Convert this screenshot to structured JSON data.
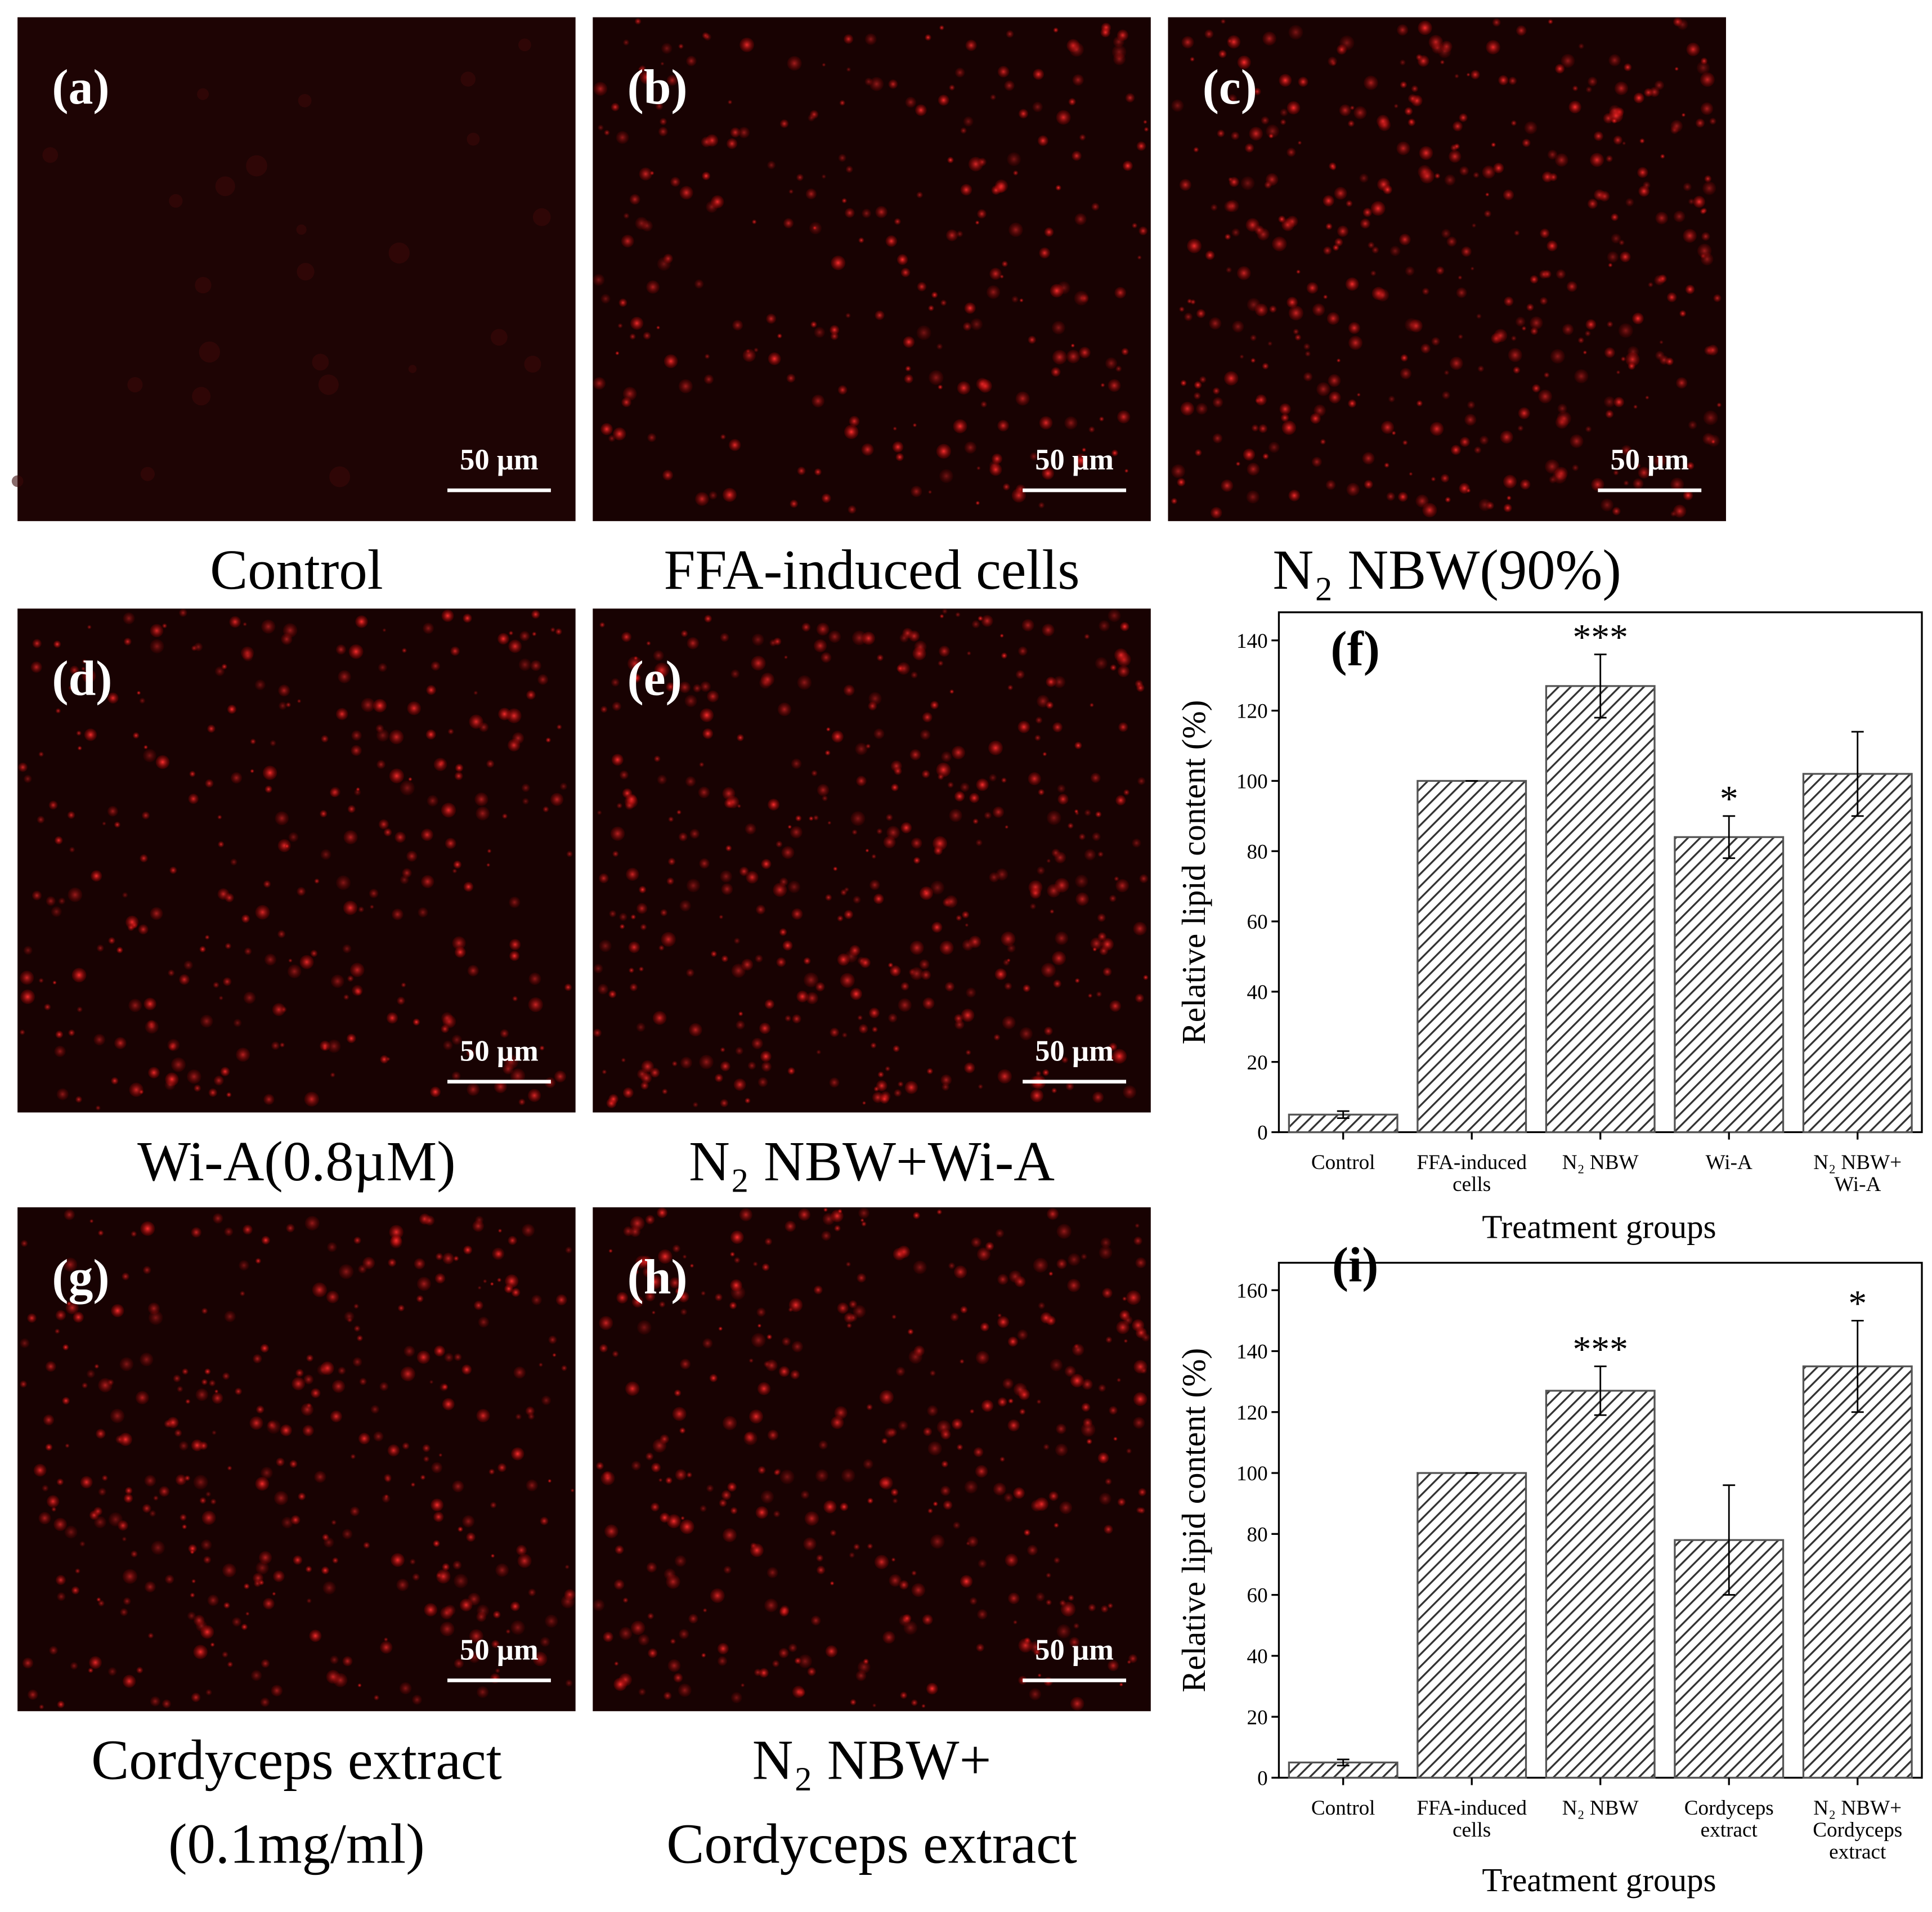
{
  "panels": [
    {
      "label": "(a)",
      "caption": [
        "Control"
      ],
      "scale_bar": "50 µm"
    },
    {
      "label": "(b)",
      "caption": [
        "FFA-induced cells"
      ],
      "scale_bar": "50 µm"
    },
    {
      "label": "(c)",
      "caption": [
        "N₂ NBW(90%)"
      ],
      "scale_bar": "50 µm"
    },
    {
      "label": "(d)",
      "caption": [
        "Wi-A(0.8µM)"
      ],
      "scale_bar": "50 µm"
    },
    {
      "label": "(e)",
      "caption": [
        "N₂ NBW+Wi-A"
      ],
      "scale_bar": "50 µm"
    },
    {
      "label": "(g)",
      "caption": [
        "Cordyceps extract",
        "(0.1mg/ml)"
      ],
      "scale_bar": "50 µm"
    },
    {
      "label": "(h)",
      "caption": [
        "N₂ NBW+",
        "Cordyceps extract"
      ],
      "scale_bar": "50 µm"
    }
  ],
  "chart_data": [
    {
      "type": "bar",
      "title": "(f)",
      "xlabel": "Treatment groups",
      "ylabel": "Relative lipid content (%)",
      "categories": [
        "Control",
        "FFA-induced\ncells",
        "N₂ NBW",
        "Wi-A",
        "N₂ NBW+\nWi-A"
      ],
      "values": [
        5,
        100,
        127,
        84,
        102
      ],
      "errors": [
        1,
        0,
        9,
        6,
        12
      ],
      "significance": [
        null,
        null,
        "***",
        "*",
        null
      ],
      "ylim": [
        0,
        148
      ],
      "yticks": [
        0,
        20,
        40,
        60,
        80,
        100,
        120,
        140
      ],
      "color": "#555555"
    },
    {
      "type": "bar",
      "title": "(i)",
      "xlabel": "Treatment groups",
      "ylabel": "Relative lipid content (%)",
      "categories": [
        "Control",
        "FFA-induced\ncells",
        "N₂ NBW",
        "Cordyceps\nextract",
        "N₂ NBW+\nCordyceps\nextract"
      ],
      "values": [
        5,
        100,
        127,
        78,
        135
      ],
      "errors": [
        1,
        0,
        8,
        18,
        15
      ],
      "significance": [
        null,
        null,
        "***",
        null,
        "*"
      ],
      "ylim": [
        0,
        169
      ],
      "yticks": [
        0,
        20,
        40,
        60,
        80,
        100,
        120,
        140,
        160
      ],
      "color": "#555555"
    }
  ]
}
